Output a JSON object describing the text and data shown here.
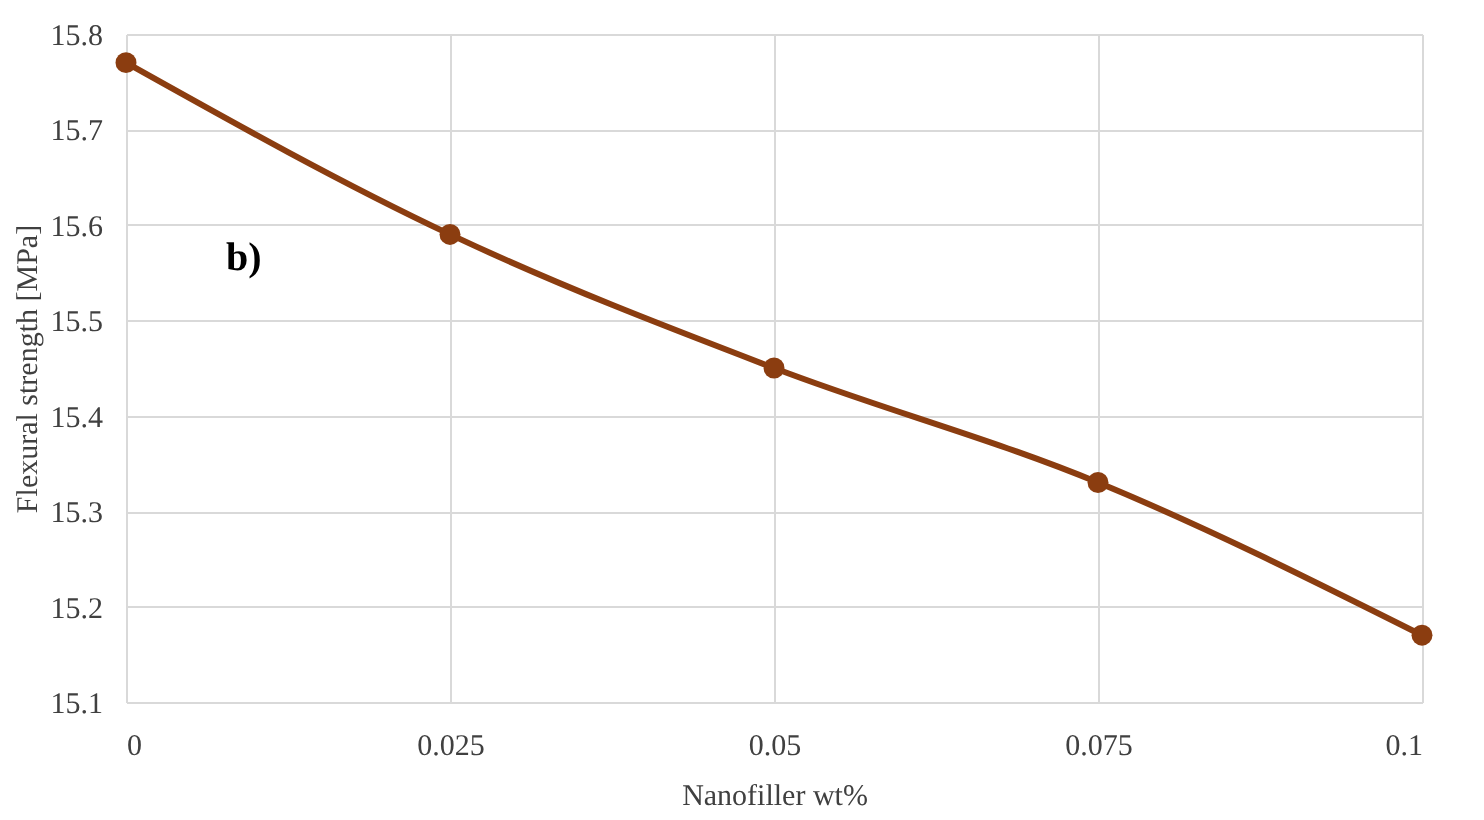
{
  "chart_data": {
    "type": "line",
    "x": [
      0,
      0.025,
      0.05,
      0.075,
      0.1
    ],
    "series": [
      {
        "color": "#8b3d10",
        "values": [
          15.77,
          15.59,
          15.45,
          15.33,
          15.17
        ]
      }
    ],
    "xlabel": "Nanofiller wt%",
    "ylabel": "Flexural strength [MPa]",
    "xlim": [
      0,
      0.1
    ],
    "xticks": [
      0,
      0.025,
      0.05,
      0.075,
      0.1
    ],
    "ylim": [
      15.1,
      15.8
    ],
    "yticks": [
      15.1,
      15.2,
      15.3,
      15.4,
      15.5,
      15.6,
      15.7,
      15.8
    ],
    "grid": true,
    "marker": "circle",
    "line_style": "solid",
    "annotations": [
      "b)"
    ]
  }
}
